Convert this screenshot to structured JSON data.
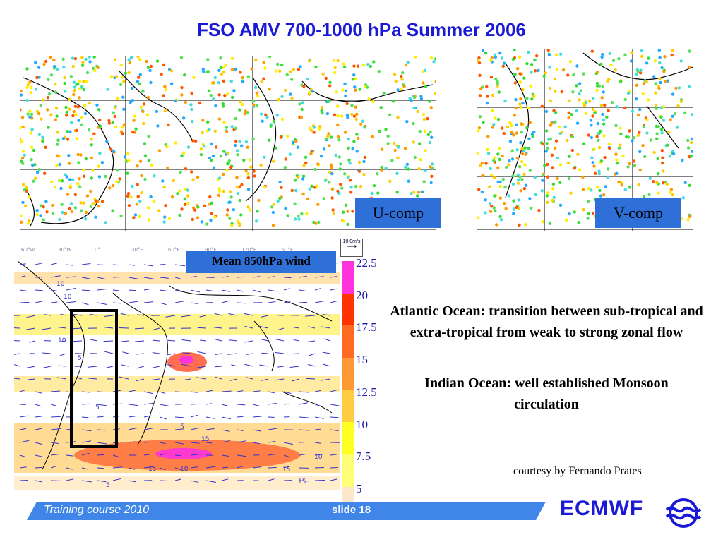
{
  "slide": {
    "title": "FSO AMV 700-1000 hPa Summer 2006",
    "u_label": "U-comp",
    "v_label": "V-comp",
    "map_legend": "Mean 850hPa wind",
    "arrow_key": "10.0m/s",
    "scale_values": [
      "22.5",
      "20",
      "17.5",
      "15",
      "12.5",
      "10",
      "7.5",
      "5"
    ],
    "scale_colors": [
      "#ff33dd",
      "#ff3300",
      "#ff6a22",
      "#ff9933",
      "#ffcc44",
      "#ffff22",
      "#ffff77",
      "#fce8c8"
    ],
    "note1": "Atlantic Ocean: transition between sub-tropical and extra-tropical from weak to strong zonal flow",
    "note2": "Indian Ocean: well established Monsoon circulation",
    "courtesy": "courtesy by Fernando Prates",
    "footer_course": "Training course  2010",
    "footer_slide": "slide 18",
    "brand": "ECMWF",
    "map_labels": [
      "60°W",
      "30°W",
      "0°",
      "30°E",
      "60°E",
      "90°E",
      "120°E",
      "150°E"
    ],
    "contour_labels": [
      "10",
      "10",
      "10",
      "5",
      "5",
      "15",
      "15",
      "10",
      "10",
      "15",
      "15",
      "5",
      "5"
    ]
  }
}
